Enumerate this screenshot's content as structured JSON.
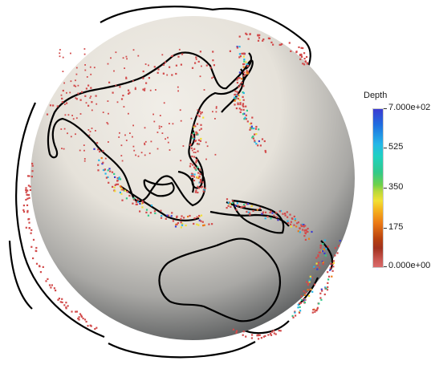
{
  "legend": {
    "title": "Depth",
    "ticks": [
      {
        "label": "7.000e+02",
        "value": 700
      },
      {
        "label": "525",
        "value": 525
      },
      {
        "label": "350",
        "value": 350
      },
      {
        "label": "175",
        "value": 175
      },
      {
        "label": "0.000e+00",
        "value": 0
      }
    ],
    "range": [
      0,
      700
    ],
    "colors": {
      "shallow": "#d96a6a",
      "mid_low": "#ec7a15",
      "mid": "#f2e034",
      "mid_high": "#32c98a",
      "deep": "#25b6e8",
      "deepest": "#3b3bd1"
    }
  },
  "scene": {
    "globe_color_light": "#ece9e2",
    "globe_color_dark": "#4a4d4f",
    "coastline_color": "#000000",
    "quake_color": "#d24b4b"
  }
}
